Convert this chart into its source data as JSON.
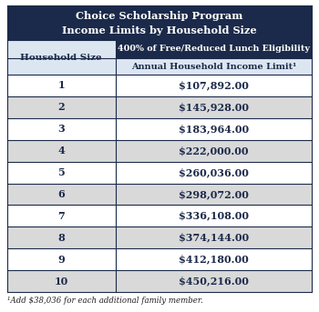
{
  "title_line1": "Choice Scholarship Program",
  "title_line2": "Income Limits by Household Size",
  "title_bg": "#1b2a4a",
  "title_color": "#ffffff",
  "col1_header": "Household Size",
  "col2_header_top": "400% of Free/Reduced Lunch Eligibility",
  "col2_header_bot": "Annual Household Income Limit¹",
  "col1_header_bg": "#dce6f1",
  "col2_header_top_bg": "#1b2a4a",
  "col2_header_top_color": "#ffffff",
  "col2_header_bot_bg": "#dce6f1",
  "col2_header_bot_color": "#1b2a4a",
  "household_sizes": [
    "1",
    "2",
    "3",
    "4",
    "5",
    "6",
    "7",
    "8",
    "9",
    "10"
  ],
  "income_limits": [
    "$107,892.00",
    "$145,928.00",
    "$183,964.00",
    "$222,000.00",
    "$260,036.00",
    "$298,072.00",
    "$336,108.00",
    "$374,144.00",
    "$412,180.00",
    "$450,216.00"
  ],
  "row_colors_even": "#ffffff",
  "row_colors_odd": "#d9d9d9",
  "text_color_data": "#1b2a4a",
  "footnote": "¹Add $38,036 for each additional family member.",
  "border_color": "#1b2a4a"
}
